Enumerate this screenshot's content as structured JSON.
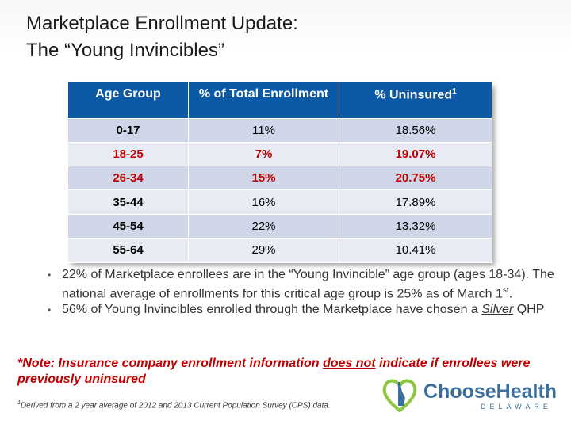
{
  "slide": {
    "title_line1": "Marketplace Enrollment Update:",
    "title_line2": "The “Young Invincibles”"
  },
  "table": {
    "headers": [
      "Age Group",
      "% of Total Enrollment",
      "% Uninsured"
    ],
    "header_sup": "1",
    "rows": [
      {
        "age": "0-17",
        "enroll": "11%",
        "uninsured": "18.56%"
      },
      {
        "age": "18-25",
        "enroll": "7%",
        "uninsured": "19.07%"
      },
      {
        "age": "26-34",
        "enroll": "15%",
        "uninsured": "20.75%"
      },
      {
        "age": "35-44",
        "enroll": "16%",
        "uninsured": "17.89%"
      },
      {
        "age": "45-54",
        "enroll": "22%",
        "uninsured": "13.32%"
      },
      {
        "age": "55-64",
        "enroll": "29%",
        "uninsured": "10.41%"
      }
    ]
  },
  "bullets": {
    "b1_text": "22% of Marketplace enrollees are in the “Young Invincible” age group (ages 18-34).  The national average of enrollments for this critical age group is 25% as of March 1",
    "b1_sup": "st",
    "b1_end": ".",
    "b2_pre": "56% of Young Invincibles enrolled through the Marketplace have chosen a ",
    "b2_silver": "Silver",
    "b2_post": " QHP"
  },
  "note": {
    "pre": "*Note: Insurance company enrollment information ",
    "emph": "does not",
    "post": " indicate if enrollees were previously uninsured"
  },
  "footnote": {
    "sup": "1",
    "text": "Derived from a 2 year average of 2012 and 2013 Current Population Survey (CPS) data."
  },
  "logo": {
    "name": "ChooseHealth",
    "sub": "DELAWARE",
    "brand_color": "#3a6f9e"
  },
  "colors": {
    "header_blue": "#0c5aa6",
    "highlight_red": "#c00000",
    "row_dark": "#cfd6e8",
    "row_light": "#e8ebf4"
  }
}
